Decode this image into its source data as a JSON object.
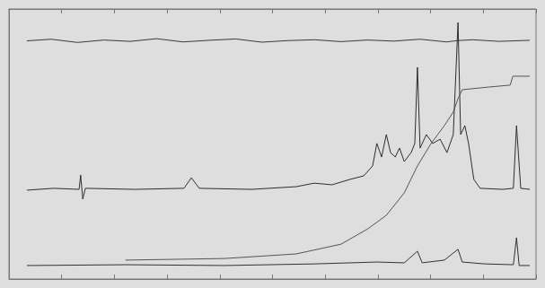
{
  "chart_data": {
    "type": "line",
    "xlim": [
      0,
      100
    ],
    "xticks": [
      0,
      10,
      20,
      30,
      40,
      50,
      60,
      70,
      80,
      90,
      100
    ],
    "ylim": [
      0,
      100
    ],
    "yticks": [
      0,
      100
    ],
    "grid": false,
    "tick_labels": false,
    "series": [
      {
        "color": "#3a3a3a",
        "x": [
          3.4,
          8.0,
          13.0,
          18.0,
          23.0,
          28.0,
          33.0,
          38.0,
          43.0,
          48.0,
          53.0,
          58.0,
          63.0,
          68.0,
          73.0,
          78.0,
          83.0,
          85.2,
          88.0,
          93.0,
          98.8
        ],
        "values": [
          88.2,
          88.8,
          87.6,
          88.5,
          88.0,
          89.0,
          87.8,
          88.4,
          88.9,
          87.7,
          88.3,
          88.6,
          87.9,
          88.5,
          88.1,
          88.8,
          87.8,
          88.3,
          88.6,
          88.0,
          88.4
        ]
      },
      {
        "color": "#2e2e2e",
        "x": [
          3.4,
          8.5,
          13.3,
          13.6,
          14.0,
          14.5,
          23.9,
          33.2,
          34.6,
          36.1,
          46.0,
          54.5,
          57.9,
          61.3,
          64.7,
          67.3,
          69.0,
          69.8,
          70.7,
          71.6,
          72.4,
          73.3,
          74.1,
          75.0,
          76.3,
          77.0,
          77.5,
          78.0,
          79.2,
          80.4,
          81.8,
          83.1,
          84.3,
          85.2,
          85.7,
          86.5,
          87.2,
          88.2,
          89.4,
          93.7,
          95.7,
          96.3,
          97.1,
          98.8
        ],
        "values": [
          32.9,
          33.6,
          33.2,
          38.5,
          29.6,
          33.6,
          33.2,
          33.6,
          37.5,
          33.6,
          33.2,
          34.2,
          35.5,
          34.9,
          36.9,
          38.2,
          41.9,
          50.2,
          45.2,
          53.5,
          46.8,
          45.2,
          48.5,
          43.5,
          46.8,
          50.2,
          78.4,
          48.5,
          53.5,
          50.2,
          51.8,
          46.8,
          53.5,
          95.0,
          53.5,
          56.8,
          50.2,
          36.9,
          33.6,
          33.2,
          33.6,
          56.8,
          33.6,
          33.2
        ]
      },
      {
        "color": "#555555",
        "x": [
          22.1,
          40.9,
          54.5,
          63.0,
          68.1,
          71.6,
          75.0,
          77.5,
          80.1,
          82.6,
          84.3,
          85.2,
          86.0,
          91.1,
          95.1,
          95.6,
          98.8
        ],
        "values": [
          7.0,
          7.6,
          9.3,
          12.9,
          18.6,
          23.6,
          31.9,
          41.9,
          50.2,
          56.8,
          61.8,
          66.8,
          70.1,
          71.1,
          71.8,
          75.1,
          75.1
        ]
      },
      {
        "color": "#333333",
        "x": [
          3.4,
          22.1,
          40.9,
          57.9,
          69.8,
          75.0,
          77.5,
          78.4,
          82.6,
          85.2,
          86.0,
          90.3,
          95.7,
          96.3,
          96.8,
          98.8
        ],
        "values": [
          5.0,
          5.3,
          5.0,
          5.6,
          6.3,
          6.0,
          10.3,
          6.0,
          7.0,
          11.0,
          6.3,
          5.6,
          5.3,
          15.3,
          5.0,
          5.0
        ]
      }
    ]
  }
}
